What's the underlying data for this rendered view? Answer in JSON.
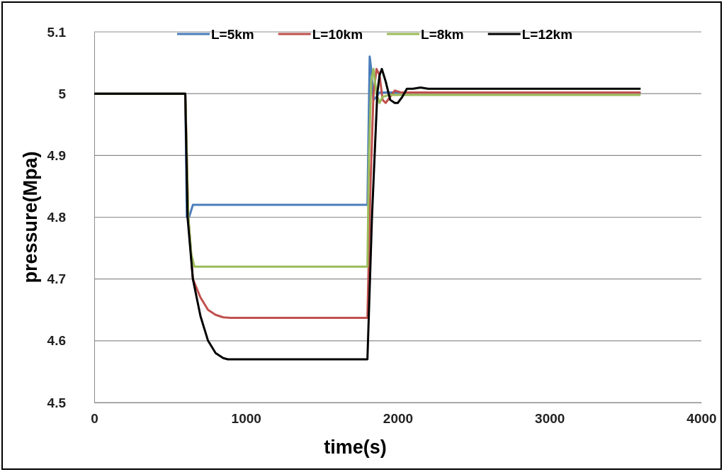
{
  "chart_data": {
    "type": "line",
    "xlabel": "time(s)",
    "ylabel": "pressure(Mpa)",
    "xlim": [
      0,
      4000
    ],
    "xticks": [
      0,
      1000,
      2000,
      3000,
      4000
    ],
    "ylim": [
      4.5,
      5.1
    ],
    "yticks": [
      4.5,
      4.6,
      4.7,
      4.8,
      4.9,
      5,
      5.1
    ],
    "grid": "y",
    "legend": "top",
    "marker": "none",
    "line_style": "solid",
    "series": [
      {
        "name": "L=5km",
        "color": "#4a7ebb",
        "x": [
          0,
          600,
          610,
          625,
          650,
          700,
          1800,
          1808,
          1815,
          1825,
          1840,
          1860,
          1880,
          1900,
          1950,
          3600
        ],
        "values": [
          5,
          5,
          4.8,
          4.8,
          4.82,
          4.82,
          4.82,
          4.95,
          5.06,
          5.04,
          4.99,
          4.995,
          5.002,
          5.002,
          5.002,
          5.002
        ]
      },
      {
        "name": "L=10km",
        "color": "#c0504d",
        "x": [
          0,
          600,
          620,
          650,
          700,
          750,
          800,
          850,
          900,
          1000,
          1800,
          1820,
          1840,
          1860,
          1880,
          1900,
          1920,
          1950,
          1980,
          2020,
          3600
        ],
        "values": [
          5,
          5,
          4.8,
          4.7,
          4.67,
          4.65,
          4.642,
          4.638,
          4.637,
          4.637,
          4.637,
          4.85,
          5,
          5.04,
          5.03,
          4.99,
          4.985,
          4.995,
          5.005,
          5.002,
          5.002
        ]
      },
      {
        "name": "L=8km",
        "color": "#9bbb59",
        "x": [
          0,
          600,
          620,
          640,
          660,
          700,
          1800,
          1810,
          1825,
          1840,
          1860,
          1880,
          1900,
          1950,
          3600
        ],
        "values": [
          5,
          5,
          4.8,
          4.74,
          4.72,
          4.72,
          4.72,
          4.9,
          5.02,
          5.04,
          5.0,
          4.985,
          4.995,
          4.998,
          4.998
        ]
      },
      {
        "name": "L=12km",
        "color": "#000000",
        "x": [
          0,
          600,
          615,
          650,
          700,
          750,
          800,
          850,
          880,
          1000,
          1800,
          1830,
          1865,
          1880,
          1895,
          1920,
          1950,
          1980,
          2000,
          2030,
          2060,
          2100,
          2150,
          2200,
          3600
        ],
        "values": [
          5,
          5,
          4.8,
          4.7,
          4.64,
          4.6,
          4.58,
          4.572,
          4.57,
          4.57,
          4.57,
          4.8,
          5,
          5.03,
          5.04,
          5.02,
          4.99,
          4.985,
          4.985,
          4.995,
          5.008,
          5.008,
          5.01,
          5.008,
          5.008
        ]
      }
    ]
  }
}
